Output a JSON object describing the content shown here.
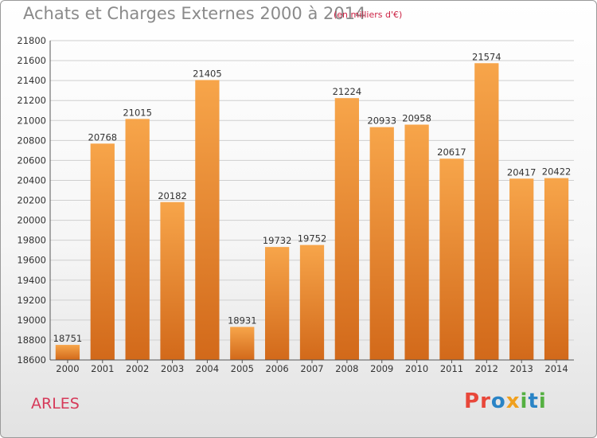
{
  "header": {
    "title": "Achats et Charges Externes 2000 à 2014",
    "subtitle": "(en milliers d'€)"
  },
  "footer": {
    "city": "ARLES",
    "logo": "Proxiti"
  },
  "colors": {
    "bar_light": "#f7a54a",
    "bar_dark": "#d2691a",
    "grid": "#cfcfcf",
    "axis": "#555555",
    "title": "#8a8a8a",
    "subtitle": "#cc2244",
    "city": "#d63a5a"
  },
  "chart_data": {
    "type": "bar",
    "categories": [
      "2000",
      "2001",
      "2002",
      "2003",
      "2004",
      "2005",
      "2006",
      "2007",
      "2008",
      "2009",
      "2010",
      "2011",
      "2012",
      "2013",
      "2014"
    ],
    "values": [
      18751,
      20768,
      21015,
      20182,
      21405,
      18931,
      19732,
      19752,
      21224,
      20933,
      20958,
      20617,
      21574,
      20417,
      20422
    ],
    "yticks": [
      18600,
      18800,
      19000,
      19200,
      19400,
      19600,
      19800,
      20000,
      20200,
      20400,
      20600,
      20800,
      21000,
      21200,
      21400,
      21600,
      21800
    ],
    "ylim": [
      18600,
      21800
    ],
    "grid": true
  }
}
